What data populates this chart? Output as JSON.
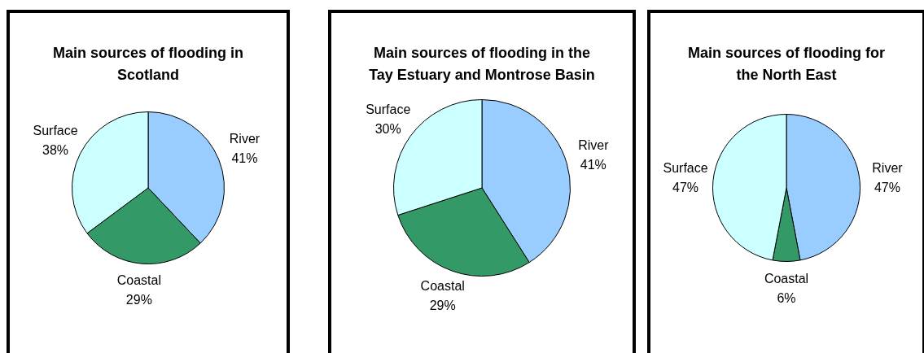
{
  "chart_data": [
    {
      "type": "pie",
      "title": "Main sources of flooding in Scotland",
      "categories": [
        "River",
        "Coastal",
        "Surface"
      ],
      "values": [
        41,
        29,
        38
      ],
      "value_labels": [
        "41%",
        "29%",
        "38%"
      ],
      "colors": [
        "#99ccff",
        "#339966",
        "#ccffff"
      ],
      "legend": false
    },
    {
      "type": "pie",
      "title": "Main sources of flooding in the Tay Estuary and Montrose Basin",
      "categories": [
        "River",
        "Coastal",
        "Surface"
      ],
      "values": [
        41,
        29,
        30
      ],
      "value_labels": [
        "41%",
        "29%",
        "30%"
      ],
      "colors": [
        "#99ccff",
        "#339966",
        "#ccffff"
      ],
      "legend": false
    },
    {
      "type": "pie",
      "title": "Main sources of flooding for the North East",
      "categories": [
        "River",
        "Coastal",
        "Surface"
      ],
      "values": [
        47,
        6,
        47
      ],
      "value_labels": [
        "47%",
        "6%",
        "47%"
      ],
      "colors": [
        "#99ccff",
        "#339966",
        "#ccffff"
      ],
      "legend": false
    }
  ]
}
